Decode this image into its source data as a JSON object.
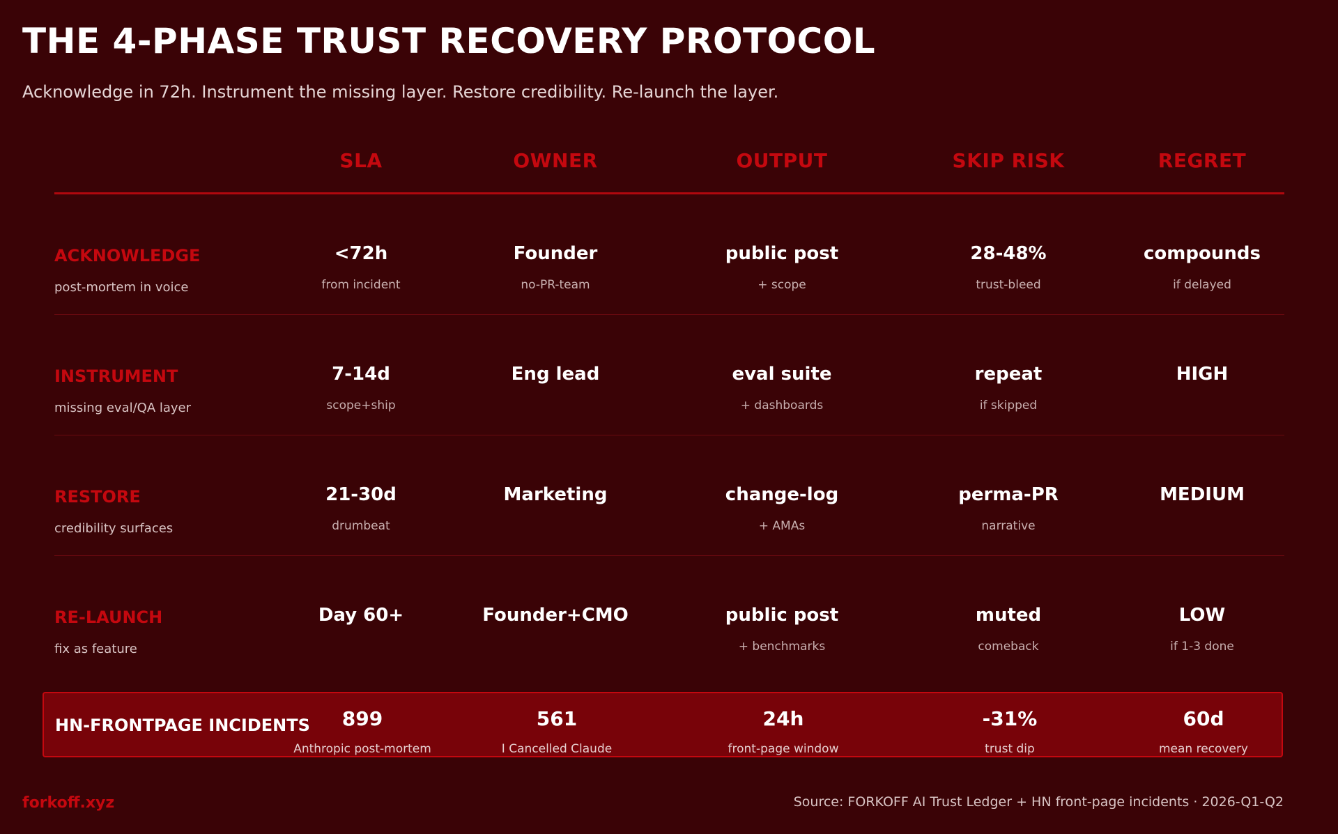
{
  "title": "THE 4-PHASE TRUST RECOVERY PROTOCOL",
  "subtitle": "Acknowledge in 72h. Instrument the missing layer. Restore credibility. Re-launch the layer.",
  "columns": [
    "SLA",
    "OWNER",
    "OUTPUT",
    "SKIP RISK",
    "REGRET"
  ],
  "rows": [
    {
      "phase": "ACKNOWLEDGE",
      "phase_sub": "post-mortem in voice",
      "cells": [
        {
          "value": "<72h",
          "sub": "from incident"
        },
        {
          "value": "Founder",
          "sub": "no-PR-team"
        },
        {
          "value": "public post",
          "sub": "+ scope"
        },
        {
          "value": "28-48%",
          "sub": "trust-bleed"
        },
        {
          "value": "compounds",
          "sub": "if delayed"
        }
      ]
    },
    {
      "phase": "INSTRUMENT",
      "phase_sub": "missing eval/QA layer",
      "cells": [
        {
          "value": "7-14d",
          "sub": "scope+ship"
        },
        {
          "value": "Eng lead",
          "sub": ""
        },
        {
          "value": "eval suite",
          "sub": "+ dashboards"
        },
        {
          "value": "repeat",
          "sub": "if skipped"
        },
        {
          "value": "HIGH",
          "sub": ""
        }
      ]
    },
    {
      "phase": "RESTORE",
      "phase_sub": "credibility surfaces",
      "cells": [
        {
          "value": "21-30d",
          "sub": "drumbeat"
        },
        {
          "value": "Marketing",
          "sub": ""
        },
        {
          "value": "change-log",
          "sub": "+ AMAs"
        },
        {
          "value": "perma-PR",
          "sub": "narrative"
        },
        {
          "value": "MEDIUM",
          "sub": ""
        }
      ]
    },
    {
      "phase": "RE-LAUNCH",
      "phase_sub": "fix as feature",
      "cells": [
        {
          "value": "Day 60+",
          "sub": ""
        },
        {
          "value": "Founder+CMO",
          "sub": ""
        },
        {
          "value": "public post",
          "sub": "+ benchmarks"
        },
        {
          "value": "muted",
          "sub": "comeback"
        },
        {
          "value": "LOW",
          "sub": "if 1-3 done"
        }
      ]
    }
  ],
  "highlight": {
    "label": "HN-FRONTPAGE INCIDENTS",
    "cells": [
      {
        "value": "899",
        "sub": "Anthropic post-mortem"
      },
      {
        "value": "561",
        "sub": "I Cancelled Claude"
      },
      {
        "value": "24h",
        "sub": "front-page window"
      },
      {
        "value": "-31%",
        "sub": "trust dip"
      },
      {
        "value": "60d",
        "sub": "mean recovery"
      }
    ]
  },
  "footer": {
    "brand": "forkoff.xyz",
    "source": "Source: FORKOFF AI Trust Ledger + HN front-page incidents · 2026-Q1-Q2"
  },
  "colors": {
    "background": "#3a0306",
    "accent": "#c4080f",
    "highlight_bg": "#780309"
  }
}
